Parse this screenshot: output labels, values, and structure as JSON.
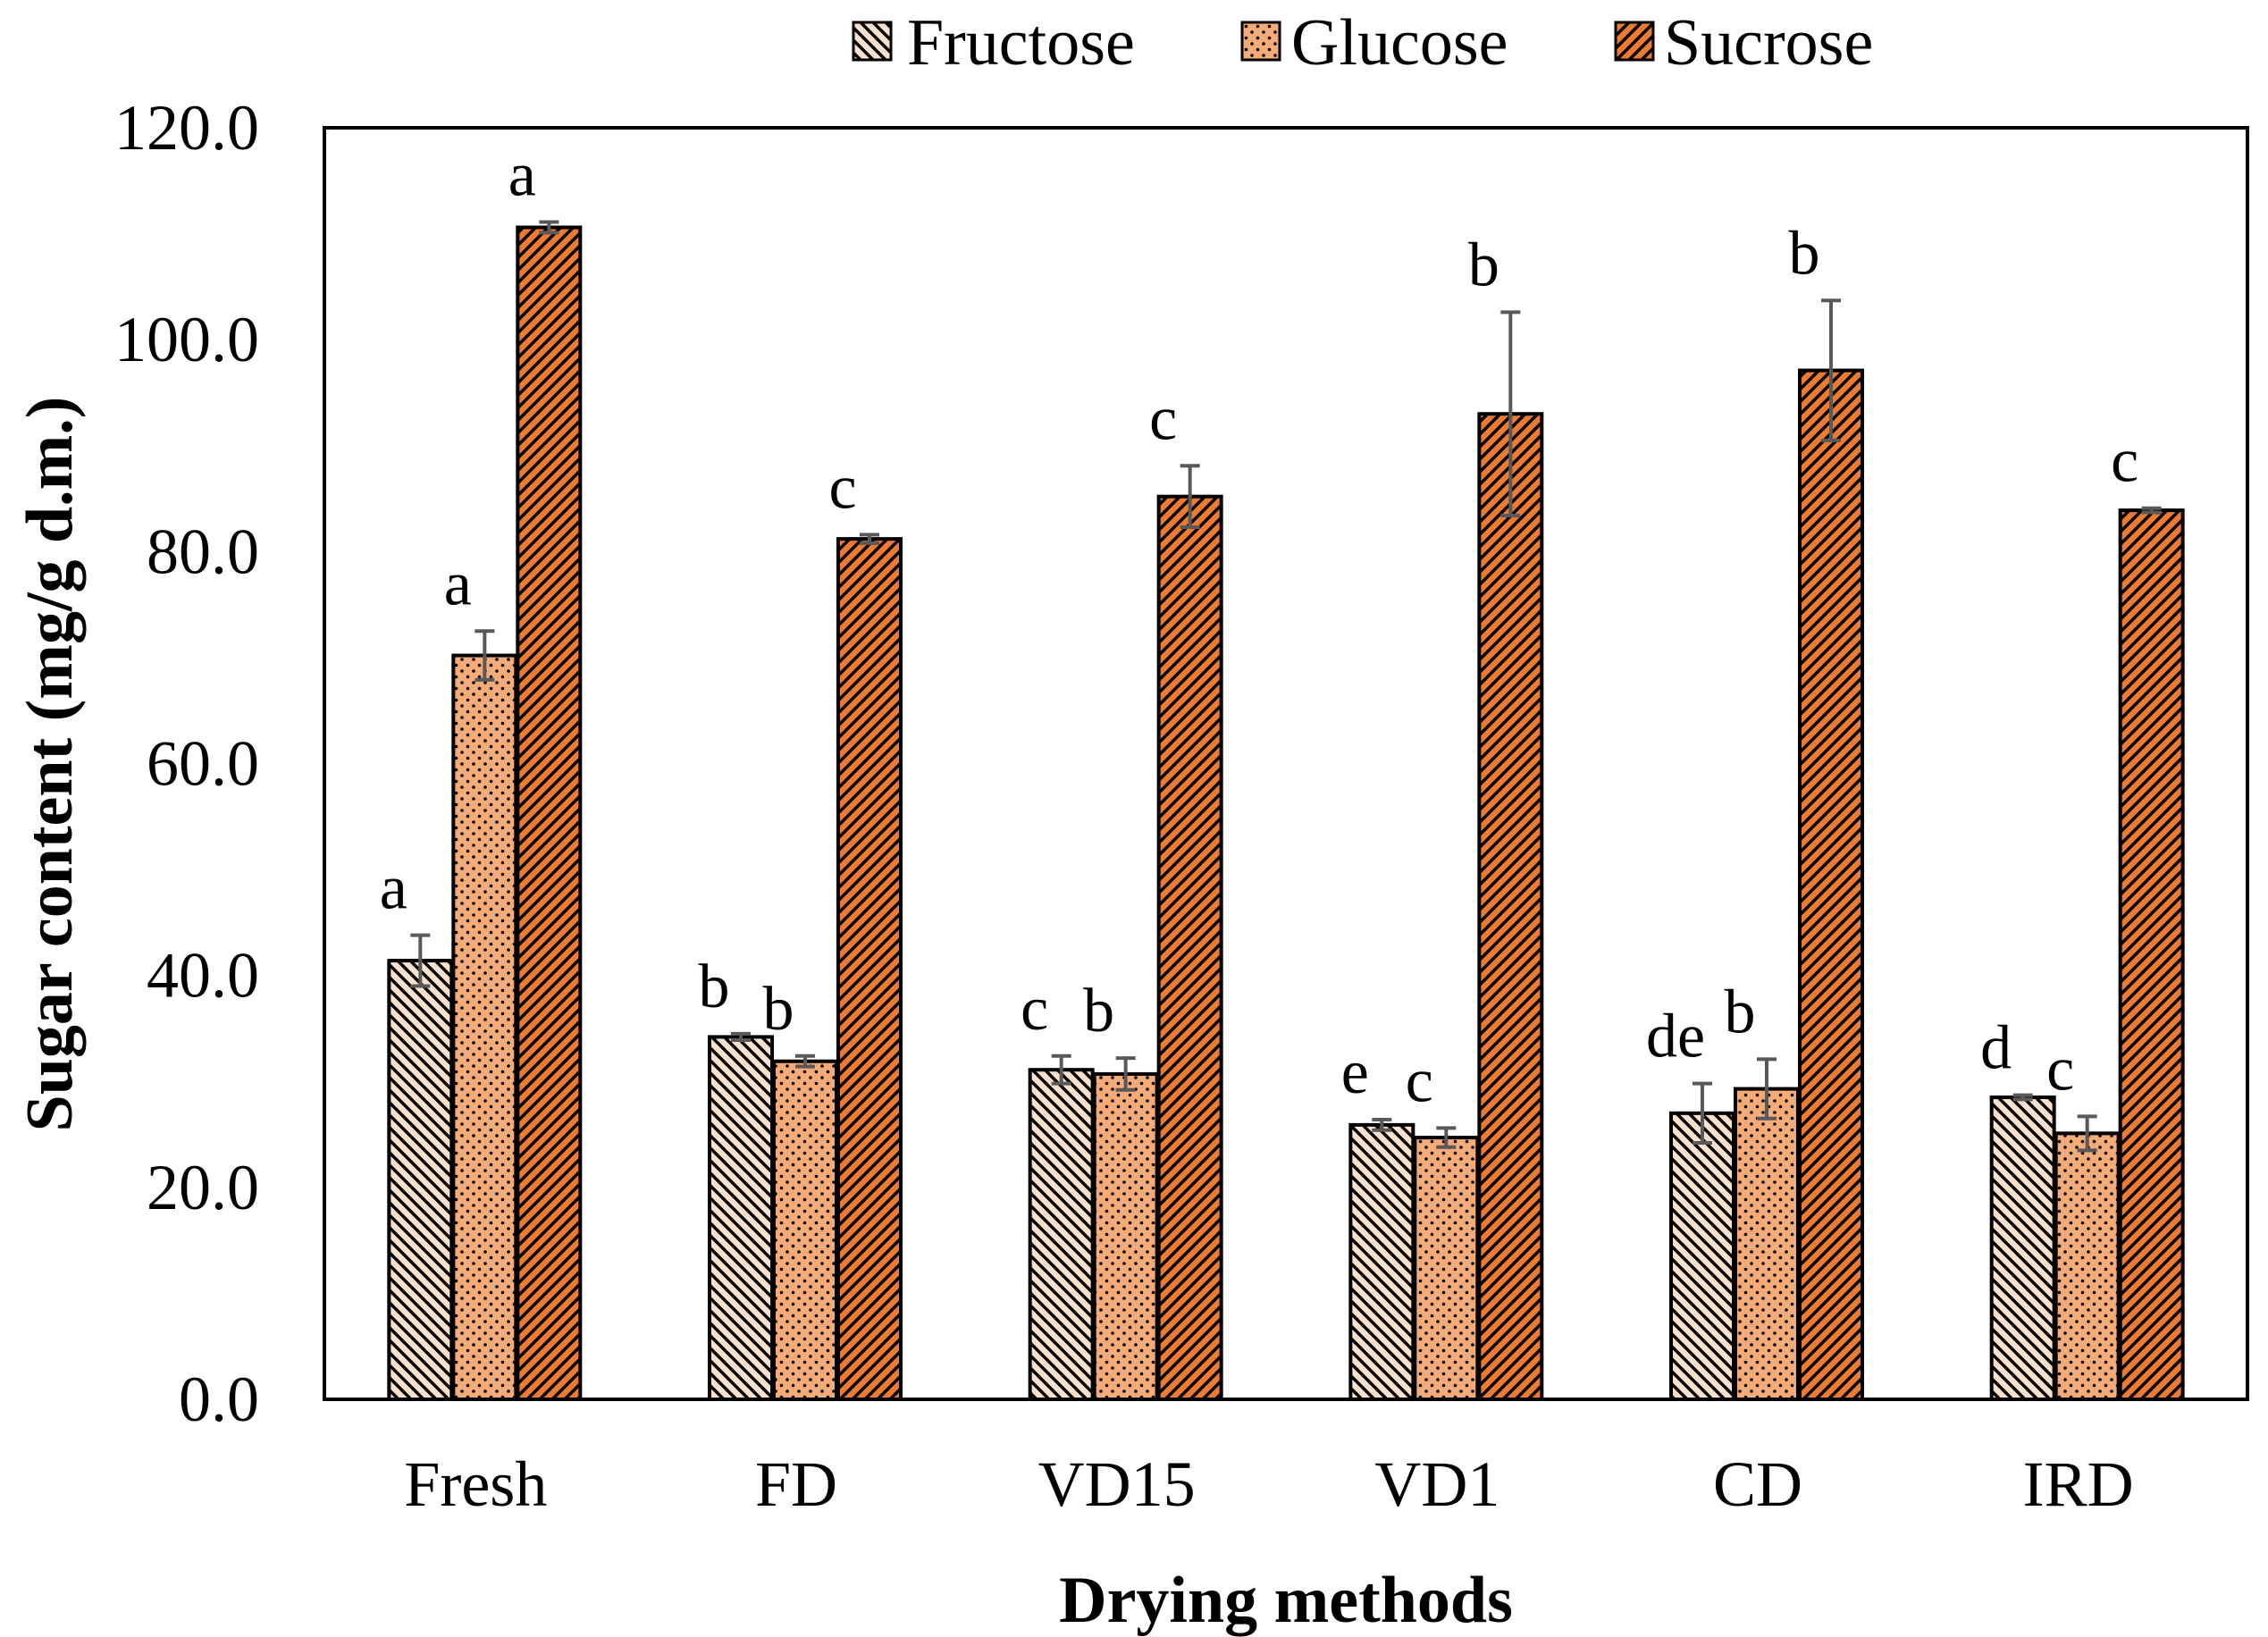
{
  "chart_data": {
    "type": "bar",
    "title": "",
    "xlabel": "Drying methods",
    "ylabel": "Sugar content (mg/g d.m.)",
    "ylim": [
      0,
      120
    ],
    "yticks": [
      "0.0",
      "20.0",
      "40.0",
      "60.0",
      "80.0",
      "100.0",
      "120.0"
    ],
    "grid": false,
    "legend_position": "top",
    "categories": [
      "Fresh",
      "FD",
      "VD15",
      "VD1",
      "CD",
      "IRD"
    ],
    "series": [
      {
        "name": "Fructose",
        "values": [
          41.4,
          34.2,
          31.1,
          25.9,
          27.0,
          28.5
        ],
        "errors": [
          2.4,
          0.3,
          1.3,
          0.5,
          2.8,
          0.2
        ],
        "letters": [
          "a",
          "b",
          "c",
          "e",
          "de",
          "d"
        ],
        "color": "#fbe0cc",
        "pattern": "backslash-hatch"
      },
      {
        "name": "Glucose",
        "values": [
          70.2,
          31.9,
          30.7,
          24.7,
          29.3,
          25.1
        ],
        "errors": [
          2.3,
          0.5,
          1.5,
          0.9,
          2.8,
          1.6
        ],
        "letters": [
          "a",
          "b",
          "b",
          "c",
          "b",
          "c"
        ],
        "color": "#f5ab78",
        "pattern": "dots"
      },
      {
        "name": "Sucrose",
        "values": [
          110.6,
          81.2,
          85.2,
          93.0,
          97.1,
          83.9
        ],
        "errors": [
          0.5,
          0.4,
          2.9,
          9.6,
          6.6,
          0.2
        ],
        "letters": [
          "a",
          "c",
          "c",
          "b",
          "b",
          "c"
        ],
        "color": "#ec7a30",
        "pattern": "slash-hatch"
      }
    ]
  }
}
